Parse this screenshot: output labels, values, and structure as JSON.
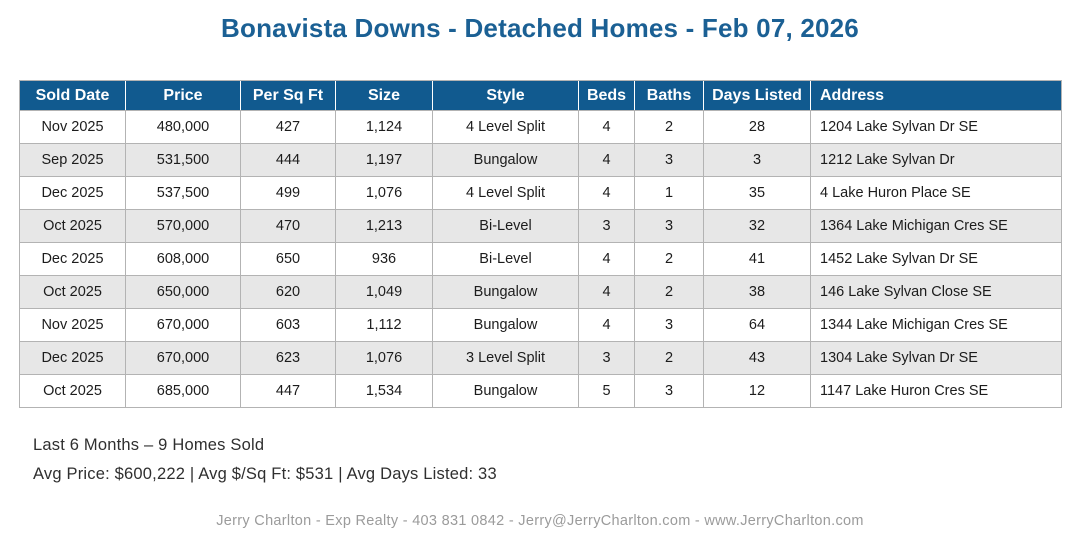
{
  "title": "Bonavista Downs - Detached Homes - Feb 07, 2026",
  "table": {
    "columns": [
      "Sold Date",
      "Price",
      "Per Sq Ft",
      "Size",
      "Style",
      "Beds",
      "Baths",
      "Days Listed",
      "Address"
    ],
    "rows": [
      [
        "Nov 2025",
        "480,000",
        "427",
        "1,124",
        "4 Level Split",
        "4",
        "2",
        "28",
        "1204 Lake Sylvan Dr SE"
      ],
      [
        "Sep 2025",
        "531,500",
        "444",
        "1,197",
        "Bungalow",
        "4",
        "3",
        "3",
        "1212 Lake Sylvan Dr"
      ],
      [
        "Dec 2025",
        "537,500",
        "499",
        "1,076",
        "4 Level Split",
        "4",
        "1",
        "35",
        "4 Lake Huron Place SE"
      ],
      [
        "Oct 2025",
        "570,000",
        "470",
        "1,213",
        "Bi-Level",
        "3",
        "3",
        "32",
        "1364 Lake Michigan Cres SE"
      ],
      [
        "Dec 2025",
        "608,000",
        "650",
        "936",
        "Bi-Level",
        "4",
        "2",
        "41",
        "1452 Lake Sylvan Dr SE"
      ],
      [
        "Oct 2025",
        "650,000",
        "620",
        "1,049",
        "Bungalow",
        "4",
        "2",
        "38",
        "146 Lake Sylvan Close SE"
      ],
      [
        "Nov 2025",
        "670,000",
        "603",
        "1,112",
        "Bungalow",
        "4",
        "3",
        "64",
        "1344 Lake Michigan Cres SE"
      ],
      [
        "Dec 2025",
        "670,000",
        "623",
        "1,076",
        "3 Level Split",
        "3",
        "2",
        "43",
        "1304 Lake Sylvan Dr SE"
      ],
      [
        "Oct 2025",
        "685,000",
        "447",
        "1,534",
        "Bungalow",
        "5",
        "3",
        "12",
        "1147 Lake Huron Cres SE"
      ]
    ]
  },
  "summary": {
    "line1": "Last 6 Months – 9 Homes Sold",
    "line2": "Avg Price: $600,222 | Avg $/Sq Ft: $531 | Avg Days Listed: 33"
  },
  "footer": {
    "credit": "Jerry Charlton - Exp Realty - 403 831 0842 - Jerry@JerryCharlton.com - www.JerryCharlton.com"
  },
  "colors": {
    "title_text": "#1b6094",
    "table_header_bg": "#115a8f",
    "row_alt_bg": "#e7e7e7",
    "border": "#b3b3b3",
    "footer_text": "#9b9b9b"
  }
}
